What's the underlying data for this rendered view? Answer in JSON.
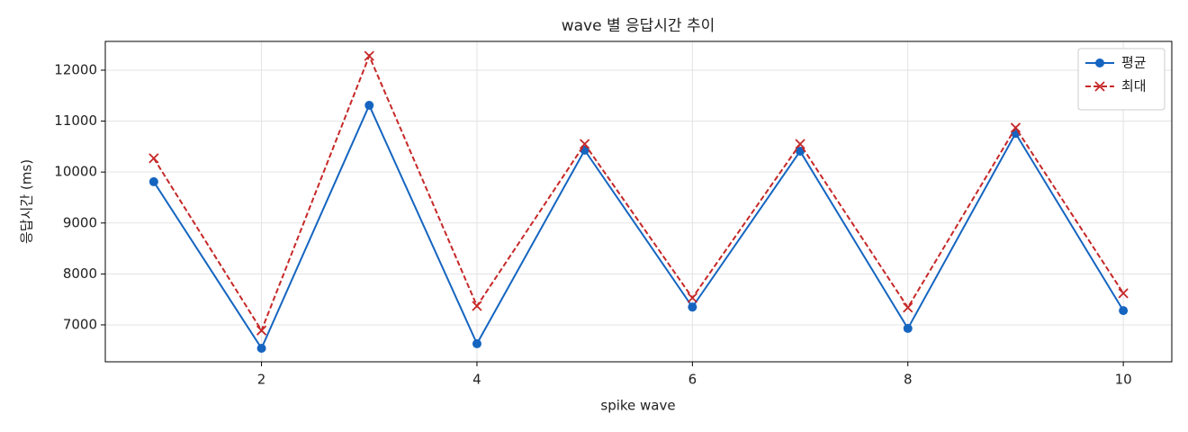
{
  "chart_data": {
    "type": "line",
    "title": "wave 별 응답시간 추이",
    "xlabel": "spike wave",
    "ylabel": "응답시간 (ms)",
    "x": [
      1,
      2,
      3,
      4,
      5,
      6,
      7,
      8,
      9,
      10
    ],
    "series": [
      {
        "name": "평균",
        "color": "#1565c0",
        "marker": "circle",
        "dash": false,
        "values": [
          9810,
          6540,
          11310,
          6630,
          10430,
          7350,
          10410,
          6930,
          10760,
          7280
        ]
      },
      {
        "name": "최대",
        "color": "#c62828",
        "marker": "x",
        "dash": true,
        "values": [
          10270,
          6890,
          12280,
          7370,
          10550,
          7530,
          10550,
          7340,
          10870,
          7620
        ]
      }
    ],
    "xlim": [
      0.55,
      10.45
    ],
    "xticks": [
      2,
      4,
      6,
      8,
      10
    ],
    "ylim": [
      6275,
      12565
    ],
    "yticks": [
      7000,
      8000,
      9000,
      10000,
      11000,
      12000
    ],
    "grid": true,
    "legend": "upper right"
  }
}
